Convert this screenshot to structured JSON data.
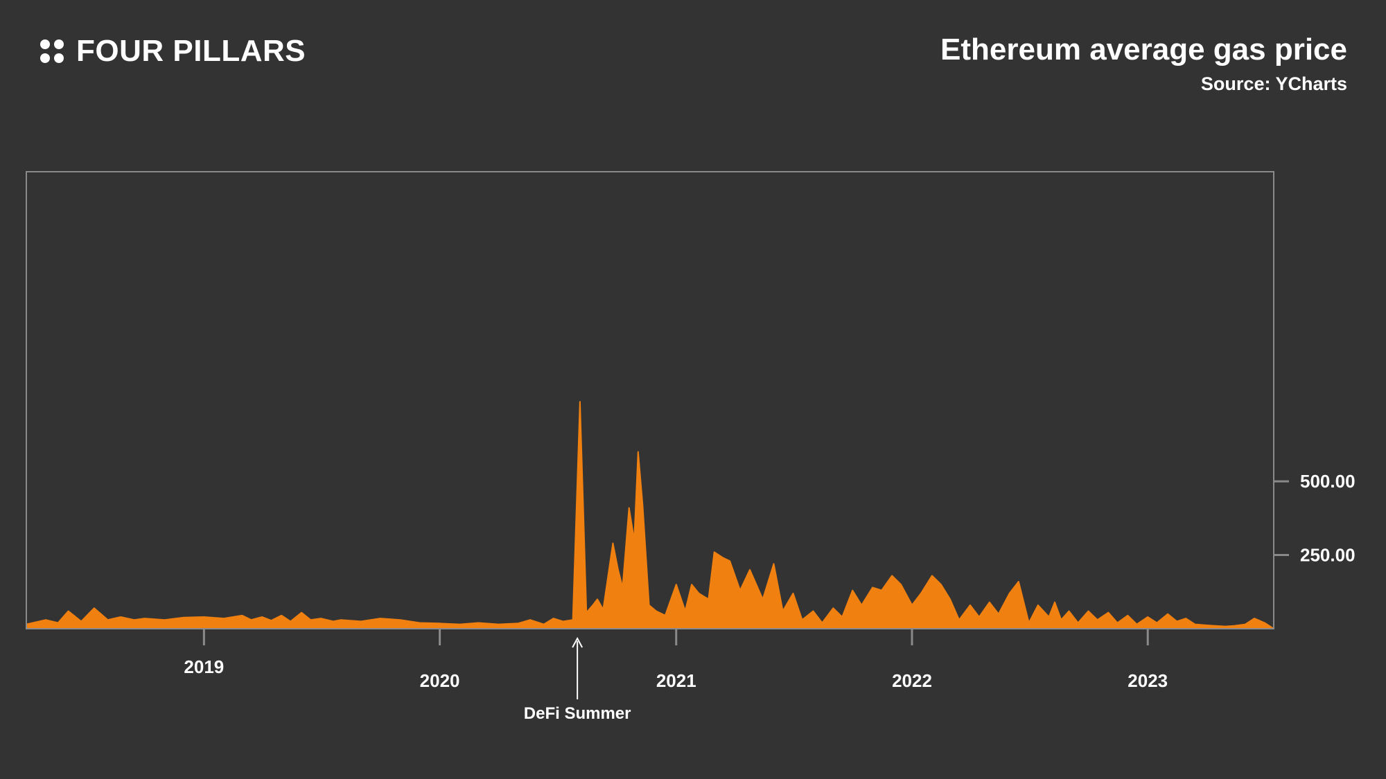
{
  "brand": {
    "name": "FOUR PILLARS",
    "icon": "four-dots-icon"
  },
  "header": {
    "title": "Ethereum average gas price",
    "subtitle": "Source: YCharts"
  },
  "annotation": {
    "label": "DeFi Summer",
    "date": "2020-08"
  },
  "colors": {
    "background": "#333333",
    "fill": "#f08010",
    "frame": "#8a8a8a",
    "text": "#ffffff"
  },
  "chart_data": {
    "type": "area",
    "title": "Ethereum average gas price",
    "xlabel": "",
    "ylabel": "",
    "xlim": [
      "2018-04-01",
      "2023-07-15"
    ],
    "ylim": [
      0,
      1550
    ],
    "x_ticks": [
      "2019",
      "2020",
      "2021",
      "2022",
      "2023"
    ],
    "y_ticks": [
      250,
      500
    ],
    "y_tick_labels": [
      "250.00",
      "500.00"
    ],
    "grid": false,
    "legend": "none",
    "series": [
      {
        "x": [
          "2018-04-01",
          "2018-05-01",
          "2018-05-20",
          "2018-06-05",
          "2018-06-25",
          "2018-07-15",
          "2018-08-05",
          "2018-08-25",
          "2018-09-15",
          "2018-10-01",
          "2018-11-01",
          "2018-12-01",
          "2019-01-01",
          "2019-02-01",
          "2019-03-01",
          "2019-03-15",
          "2019-04-01",
          "2019-04-15",
          "2019-05-01",
          "2019-05-15",
          "2019-06-01",
          "2019-06-15",
          "2019-07-01",
          "2019-07-20",
          "2019-08-01",
          "2019-09-01",
          "2019-10-01",
          "2019-11-01",
          "2019-12-01",
          "2020-01-01",
          "2020-02-01",
          "2020-03-01",
          "2020-04-01",
          "2020-05-01",
          "2020-05-20",
          "2020-06-10",
          "2020-06-25",
          "2020-07-10",
          "2020-07-25",
          "2020-08-05",
          "2020-08-15",
          "2020-08-25",
          "2020-09-01",
          "2020-09-10",
          "2020-09-25",
          "2020-10-03",
          "2020-10-10",
          "2020-10-20",
          "2020-10-28",
          "2020-11-03",
          "2020-11-10",
          "2020-11-20",
          "2020-12-01",
          "2020-12-15",
          "2021-01-01",
          "2021-01-15",
          "2021-01-25",
          "2021-02-05",
          "2021-02-20",
          "2021-03-01",
          "2021-03-15",
          "2021-03-25",
          "2021-04-10",
          "2021-04-25",
          "2021-05-15",
          "2021-06-01",
          "2021-06-15",
          "2021-07-01",
          "2021-07-15",
          "2021-08-01",
          "2021-08-15",
          "2021-09-01",
          "2021-09-15",
          "2021-10-01",
          "2021-10-15",
          "2021-11-01",
          "2021-11-15",
          "2021-12-01",
          "2021-12-15",
          "2022-01-01",
          "2022-01-15",
          "2022-02-01",
          "2022-02-15",
          "2022-03-01",
          "2022-03-15",
          "2022-04-01",
          "2022-04-15",
          "2022-05-01",
          "2022-05-15",
          "2022-06-01",
          "2022-06-15",
          "2022-07-01",
          "2022-07-15",
          "2022-08-01",
          "2022-08-10",
          "2022-08-20",
          "2022-09-01",
          "2022-09-15",
          "2022-10-01",
          "2022-10-15",
          "2022-11-01",
          "2022-11-15",
          "2022-12-01",
          "2022-12-15",
          "2023-01-01",
          "2023-01-15",
          "2023-02-01",
          "2023-02-15",
          "2023-03-01",
          "2023-03-15",
          "2023-04-01",
          "2023-04-15",
          "2023-05-01",
          "2023-05-15",
          "2023-06-01",
          "2023-06-15",
          "2023-07-01",
          "2023-07-15"
        ],
        "values": [
          15,
          30,
          20,
          60,
          25,
          70,
          30,
          40,
          30,
          35,
          30,
          38,
          40,
          35,
          45,
          30,
          40,
          28,
          45,
          25,
          55,
          30,
          35,
          25,
          30,
          25,
          35,
          30,
          20,
          18,
          15,
          20,
          15,
          18,
          30,
          15,
          35,
          25,
          30,
          770,
          55,
          80,
          100,
          65,
          290,
          200,
          140,
          410,
          300,
          600,
          420,
          80,
          60,
          45,
          150,
          60,
          150,
          120,
          100,
          260,
          240,
          230,
          130,
          200,
          100,
          220,
          60,
          120,
          30,
          60,
          20,
          70,
          40,
          130,
          80,
          140,
          130,
          180,
          150,
          80,
          120,
          180,
          150,
          100,
          30,
          80,
          40,
          90,
          50,
          120,
          160,
          20,
          80,
          40,
          90,
          30,
          60,
          20,
          60,
          30,
          55,
          20,
          45,
          15,
          40,
          20,
          50,
          25,
          35,
          15,
          12,
          10,
          8,
          10,
          15,
          35,
          20,
          0
        ]
      }
    ]
  }
}
